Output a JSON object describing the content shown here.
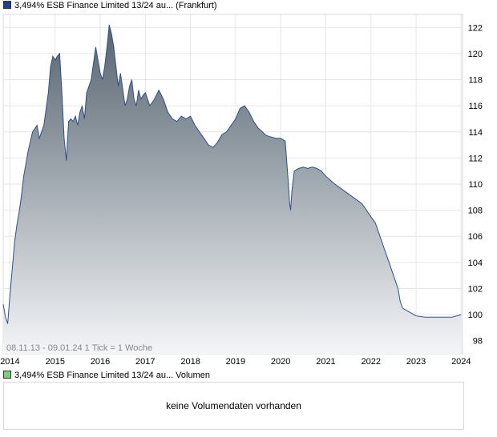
{
  "legend": {
    "price_label": "3,494% ESB Finance Limited 13/24 au... (Frankfurt)",
    "price_color": "#1f3f8f",
    "volume_label": "3,494% ESB Finance Limited 13/24 au... Volumen",
    "volume_color": "#7ccf7c"
  },
  "info": {
    "range": "08.11.13 - 09.01.24",
    "tick": "1 Tick = 1 Woche"
  },
  "volume": {
    "message": "keine Volumendaten vorhanden"
  },
  "chart_data": {
    "type": "area",
    "x_start": 2013.85,
    "x_end": 2024.03,
    "ylim": [
      97,
      123
    ],
    "xticks": [
      2014,
      2015,
      2016,
      2017,
      2018,
      2019,
      2020,
      2021,
      2022,
      2023,
      2024
    ],
    "yticks": [
      98,
      100,
      102,
      104,
      106,
      108,
      110,
      112,
      114,
      116,
      118,
      120,
      122
    ],
    "grid": true,
    "line_color": "#2c4f8c",
    "fill_top_color": "#56646f",
    "fill_bottom_color": "#f4f5f8",
    "series": [
      {
        "x": [
          2013.85,
          2013.9,
          2013.95,
          2014.0,
          2014.05,
          2014.1,
          2014.15,
          2014.2,
          2014.25,
          2014.3,
          2014.4,
          2014.5,
          2014.6,
          2014.65,
          2014.75,
          2014.85,
          2014.9,
          2014.95,
          2015.0,
          2015.05,
          2015.1,
          2015.15,
          2015.2,
          2015.25,
          2015.3,
          2015.35,
          2015.4,
          2015.45,
          2015.5,
          2015.55,
          2015.6,
          2015.65,
          2015.7,
          2015.8,
          2015.9,
          2016.0,
          2016.05,
          2016.1,
          2016.15,
          2016.2,
          2016.25,
          2016.3,
          2016.35,
          2016.4,
          2016.45,
          2016.55,
          2016.6,
          2016.65,
          2016.7,
          2016.75,
          2016.8,
          2016.85,
          2016.9,
          2016.95,
          2017.0,
          2017.1,
          2017.2,
          2017.3,
          2017.4,
          2017.5,
          2017.6,
          2017.7,
          2017.8,
          2017.9,
          2018.0,
          2018.1,
          2018.2,
          2018.3,
          2018.4,
          2018.5,
          2018.6,
          2018.7,
          2018.8,
          2018.9,
          2019.0,
          2019.1,
          2019.2,
          2019.3,
          2019.4,
          2019.5,
          2019.6,
          2019.65,
          2019.7,
          2019.8,
          2019.9,
          2020.0,
          2020.1,
          2020.15,
          2020.2,
          2020.22,
          2020.25,
          2020.3,
          2020.4,
          2020.5,
          2020.6,
          2020.7,
          2020.8,
          2020.9,
          2021.0,
          2021.2,
          2021.4,
          2021.6,
          2021.8,
          2022.0,
          2022.1,
          2022.2,
          2022.3,
          2022.4,
          2022.5,
          2022.55,
          2022.6,
          2022.65,
          2022.7,
          2022.8,
          2022.9,
          2023.0,
          2023.2,
          2023.4,
          2023.6,
          2023.8,
          2024.0
        ],
        "y": [
          100.8,
          99.8,
          99.3,
          101.5,
          103.5,
          105.5,
          106.8,
          107.8,
          109.0,
          110.5,
          112.5,
          114.0,
          114.5,
          113.5,
          114.5,
          117.0,
          119.0,
          119.8,
          119.5,
          119.8,
          120.0,
          117.0,
          113.5,
          111.8,
          114.8,
          115.0,
          114.8,
          115.2,
          114.5,
          115.5,
          116.0,
          115.0,
          117.0,
          118.0,
          120.5,
          118.5,
          118.0,
          119.0,
          120.5,
          122.2,
          121.5,
          120.5,
          119.0,
          117.5,
          118.5,
          116.0,
          116.5,
          117.5,
          118.0,
          116.5,
          116.0,
          117.2,
          116.5,
          116.8,
          117.0,
          116.0,
          116.5,
          117.2,
          116.5,
          115.5,
          115.0,
          114.8,
          115.2,
          115.0,
          115.2,
          114.5,
          114.0,
          113.5,
          113.0,
          112.8,
          113.2,
          113.8,
          114.0,
          114.5,
          115.0,
          115.8,
          116.0,
          115.5,
          114.8,
          114.3,
          114.0,
          113.8,
          113.7,
          113.6,
          113.5,
          113.5,
          113.3,
          111.0,
          108.5,
          108.0,
          109.5,
          111.0,
          111.2,
          111.3,
          111.2,
          111.3,
          111.2,
          111.0,
          110.6,
          110.0,
          109.5,
          109.0,
          108.5,
          107.5,
          107.0,
          106.0,
          105.0,
          104.0,
          103.0,
          102.5,
          102.0,
          101.0,
          100.5,
          100.3,
          100.1,
          99.9,
          99.8,
          99.8,
          99.8,
          99.8,
          100.0
        ]
      }
    ]
  }
}
